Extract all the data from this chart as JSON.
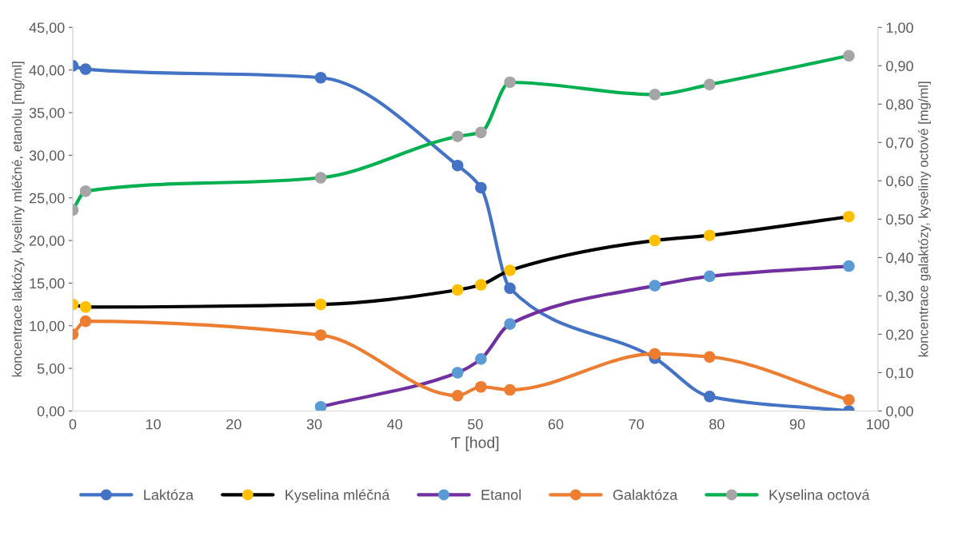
{
  "chart_data": {
    "type": "line",
    "xlabel": "Ƭ [hod]",
    "ylabel": "koncentrace laktózy, kyseliny mléčné, etanolu [mg/ml]",
    "y2label": "koncentrace galaktózy, kyseliny octové [mg/ml]",
    "x": [
      0,
      1.6,
      30.8,
      47.8,
      50.7,
      54.3,
      72.3,
      79.1,
      96.4
    ],
    "series": [
      {
        "name": "Laktóza",
        "color": "#4472c4",
        "colors": [
          "#4472c4",
          "#4472c4",
          "#4472c4",
          "#4472c4",
          "#4472c4",
          "#4472c4",
          "#4472c4",
          "#4472c4",
          "#4472c4"
        ],
        "values": [
          40.5,
          40.1,
          39.1,
          28.8,
          26.2,
          14.4,
          6.2,
          1.7,
          0.0
        ]
      },
      {
        "name": "Kyselina mléčná",
        "color": "#000000",
        "colors": [
          "#ffc000",
          "#ffc000",
          "#ffc000",
          "#ffc000",
          "#ffc000",
          "#ffc000",
          "#ffc000",
          "#ffc000",
          "#ffc000"
        ],
        "values": [
          12.5,
          12.2,
          12.5,
          14.2,
          14.8,
          16.5,
          20.0,
          20.6,
          22.8
        ]
      },
      {
        "name": "Etanol",
        "color": "#7030a0",
        "colors": [
          "#5b9bd5",
          "#5b9bd5",
          "#5b9bd5",
          "#5b9bd5",
          "#5b9bd5",
          "#5b9bd5",
          "#5b9bd5"
        ],
        "x": [
          30.8,
          47.8,
          50.7,
          54.3,
          72.3,
          79.1,
          96.4
        ],
        "values": [
          0.5,
          4.5,
          6.1,
          10.2,
          14.7,
          15.8,
          17.0
        ]
      },
      {
        "name": "Galaktóza",
        "color": "#ed7d31",
        "colors": [
          "#ed7d31",
          "#ed7d31",
          "#ed7d31",
          "#ed7d31",
          "#ed7d31",
          "#ed7d31",
          "#ed7d31",
          "#ed7d31",
          "#ed7d31"
        ],
        "axis": "y2",
        "values": [
          0.2,
          0.234,
          0.198,
          0.04,
          0.063,
          0.055,
          0.149,
          0.141,
          0.029
        ]
      },
      {
        "name": "Kyselina octová",
        "color": "#00b050",
        "colors": [
          "#a5a5a5",
          "#a5a5a5",
          "#a5a5a5",
          "#a5a5a5",
          "#a5a5a5",
          "#a5a5a5",
          "#a5a5a5",
          "#a5a5a5",
          "#a5a5a5"
        ],
        "axis": "y2",
        "values": [
          0.524,
          0.573,
          0.608,
          0.716,
          0.726,
          0.857,
          0.825,
          0.851,
          0.926
        ]
      }
    ],
    "xlim": [
      0,
      100
    ],
    "xticks": [
      0,
      10,
      20,
      30,
      40,
      50,
      60,
      70,
      80,
      90,
      100
    ],
    "ylim": [
      0,
      45
    ],
    "yticks": [
      {
        "value": 0,
        "label": "0,00"
      },
      {
        "value": 5,
        "label": "5,00"
      },
      {
        "value": 10,
        "label": "10,00"
      },
      {
        "value": 15,
        "label": "15,00"
      },
      {
        "value": 20,
        "label": "20,00"
      },
      {
        "value": 25,
        "label": "25,00"
      },
      {
        "value": 30,
        "label": "30,00"
      },
      {
        "value": 35,
        "label": "35,00"
      },
      {
        "value": 40,
        "label": "40,00"
      },
      {
        "value": 45,
        "label": "45,00"
      }
    ],
    "y2lim": [
      0,
      1
    ],
    "y2ticks": [
      {
        "value": 0,
        "label": "0,00"
      },
      {
        "value": 0.1,
        "label": "0,10"
      },
      {
        "value": 0.2,
        "label": "0,20"
      },
      {
        "value": 0.3,
        "label": "0,30"
      },
      {
        "value": 0.4,
        "label": "0,40"
      },
      {
        "value": 0.5,
        "label": "0,50"
      },
      {
        "value": 0.6,
        "label": "0,60"
      },
      {
        "value": 0.7,
        "label": "0,70"
      },
      {
        "value": 0.8,
        "label": "0,80"
      },
      {
        "value": 0.9,
        "label": "0,90"
      },
      {
        "value": 1,
        "label": "1,00"
      }
    ],
    "marker": "circle",
    "line_style": "solid",
    "legend": "bottom",
    "grid": false
  }
}
